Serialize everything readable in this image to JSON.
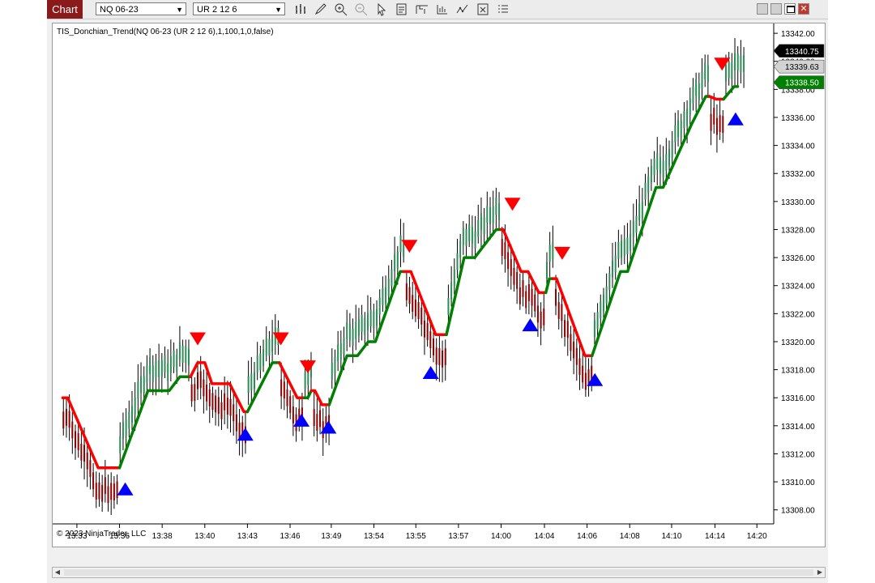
{
  "toolbar": {
    "chart_tab": "Chart",
    "instrument": "NQ 06-23",
    "bar_type": "UR 2 12 6",
    "icons": [
      "bar-type-icon",
      "drawing-tool-icon",
      "zoom-in-icon",
      "zoom-out-icon",
      "select-pointer-icon",
      "data-box-icon",
      "chart-trader-icon",
      "strategies-icon",
      "indicators-icon",
      "templates-icon",
      "properties-icon"
    ]
  },
  "window_buttons": [
    "tile-icon",
    "minimize-icon",
    "maximize-icon",
    "close-icon"
  ],
  "indicator_label": "TIS_Donchian_Trend(NQ 06-23 (UR 2 12 6),1,100,1,0,false)",
  "copyright": "© 2023 NinjaTrader, LLC",
  "price_markers": [
    {
      "label": "13340.75",
      "price": 13340.75,
      "bg": "#000000",
      "fg": "#ffffff"
    },
    {
      "label": "13339.63",
      "price": 13339.63,
      "bg": "#d3d3d3",
      "fg": "#000000"
    },
    {
      "label": "13338.50",
      "price": 13338.5,
      "bg": "#008000",
      "fg": "#ffffff"
    }
  ],
  "chart_data": {
    "type": "line",
    "ylim": [
      13307,
      13342.7
    ],
    "yticks": [
      "13308.00",
      "13310.00",
      "13312.00",
      "13314.00",
      "13316.00",
      "13318.00",
      "13320.00",
      "13322.00",
      "13324.00",
      "13326.00",
      "13328.00",
      "13330.00",
      "13332.00",
      "13334.00",
      "13336.00",
      "13338.00",
      "13340.00",
      "13342.00"
    ],
    "xticks": [
      "13:33",
      "13:36",
      "13:38",
      "13:40",
      "13:43",
      "13:46",
      "13:49",
      "13:54",
      "13:55",
      "13:57",
      "14:00",
      "14:04",
      "14:06",
      "14:08",
      "14:10",
      "14:14",
      "14:20"
    ],
    "xlim": [
      0,
      100
    ],
    "xtick_positions": [
      2.5,
      8.5,
      14.5,
      20.5,
      26.5,
      32.5,
      38.3,
      44.3,
      50.2,
      56.2,
      62.2,
      68.3,
      74.3,
      80.3,
      86.2,
      92.3,
      98.2
    ],
    "colors": {
      "up_trend": "#008000",
      "down_trend": "#ff0000",
      "buy_signal": "#0000ff",
      "sell_signal": "#ff0000",
      "bar": "#000000",
      "bar_up": "#2e8b57",
      "bar_down": "#8b0000"
    },
    "series": [
      {
        "name": "trend",
        "points": [
          [
            0.5,
            13316
          ],
          [
            1.2,
            13316
          ],
          [
            5.5,
            13311
          ],
          [
            8.5,
            13311
          ],
          [
            12.5,
            13316.5
          ],
          [
            15.5,
            13316.5
          ],
          [
            17,
            13317.5
          ],
          [
            18.5,
            13317.5
          ],
          [
            19.5,
            13318.5
          ],
          [
            20.5,
            13318.5
          ],
          [
            21.5,
            13317
          ],
          [
            24,
            13317
          ],
          [
            26,
            13315
          ],
          [
            26.5,
            13315
          ],
          [
            30,
            13318.5
          ],
          [
            31,
            13318.5
          ],
          [
            33.5,
            13316
          ],
          [
            35,
            13316
          ],
          [
            35.5,
            13316.5
          ],
          [
            36,
            13316.5
          ],
          [
            37,
            13315.5
          ],
          [
            38,
            13315.5
          ],
          [
            40.5,
            13319
          ],
          [
            42,
            13319
          ],
          [
            43.5,
            13320
          ],
          [
            44.5,
            13320
          ],
          [
            48,
            13325
          ],
          [
            49.5,
            13325
          ],
          [
            53,
            13320.5
          ],
          [
            54.5,
            13320.5
          ],
          [
            57,
            13326
          ],
          [
            58.5,
            13326
          ],
          [
            61.5,
            13328
          ],
          [
            62.5,
            13328
          ],
          [
            65,
            13325
          ],
          [
            66,
            13325
          ],
          [
            67.5,
            13323.5
          ],
          [
            68.5,
            13323.5
          ],
          [
            69,
            13324.5
          ],
          [
            70,
            13324.5
          ],
          [
            74,
            13319
          ],
          [
            75,
            13319
          ],
          [
            79,
            13325
          ],
          [
            80,
            13325
          ],
          [
            84,
            13331
          ],
          [
            85,
            13331
          ],
          [
            89,
            13335.5
          ],
          [
            91,
            13337.5
          ],
          [
            91.5,
            13337.5
          ],
          [
            92.5,
            13337.3
          ],
          [
            93.5,
            13337.3
          ],
          [
            95,
            13338.2
          ]
        ]
      },
      {
        "name": "trend_colors",
        "segments": [
          {
            "from": 0.5,
            "to": 8.5,
            "dir": "down"
          },
          {
            "from": 8.5,
            "to": 18.5,
            "dir": "up"
          },
          {
            "from": 18.5,
            "to": 26.5,
            "dir": "down"
          },
          {
            "from": 26.5,
            "to": 31,
            "dir": "up"
          },
          {
            "from": 31,
            "to": 34.5,
            "dir": "down"
          },
          {
            "from": 34.5,
            "to": 35.5,
            "dir": "up"
          },
          {
            "from": 35.5,
            "to": 38,
            "dir": "down"
          },
          {
            "from": 38,
            "to": 48.5,
            "dir": "up"
          },
          {
            "from": 48.5,
            "to": 54.5,
            "dir": "down"
          },
          {
            "from": 54.5,
            "to": 62.2,
            "dir": "up"
          },
          {
            "from": 62.2,
            "to": 68.5,
            "dir": "down"
          },
          {
            "from": 68.5,
            "to": 69.5,
            "dir": "up"
          },
          {
            "from": 69.5,
            "to": 75,
            "dir": "down"
          },
          {
            "from": 75,
            "to": 91.5,
            "dir": "up"
          },
          {
            "from": 91.5,
            "to": 93.5,
            "dir": "down"
          },
          {
            "from": 93.5,
            "to": 95.5,
            "dir": "up"
          }
        ]
      },
      {
        "name": "sell_signals",
        "points": [
          [
            19.5,
            13320.2
          ],
          [
            31.2,
            13320.2
          ],
          [
            35,
            13318.2
          ],
          [
            49.3,
            13326.8
          ],
          [
            63.8,
            13329.8
          ],
          [
            70.8,
            13326.3
          ],
          [
            93.3,
            13339.8
          ]
        ]
      },
      {
        "name": "buy_signals",
        "points": [
          [
            9.3,
            13309.5
          ],
          [
            26.2,
            13313.4
          ],
          [
            34.1,
            13314.4
          ],
          [
            37.9,
            13313.9
          ],
          [
            52.3,
            13317.8
          ],
          [
            66.3,
            13321.2
          ],
          [
            75.4,
            13317.3
          ],
          [
            95.2,
            13335.9
          ]
        ]
      }
    ]
  }
}
